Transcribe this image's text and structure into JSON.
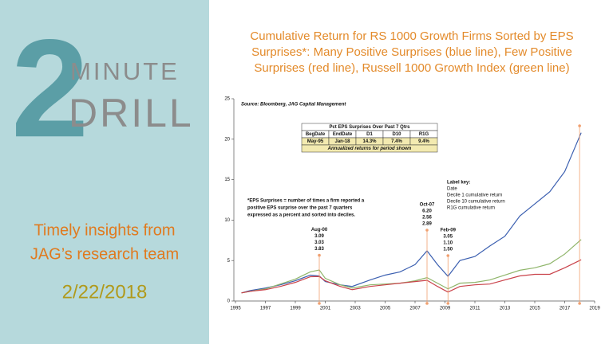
{
  "panel": {
    "number": "2",
    "word1": "MINUTE",
    "word2": "DRILL",
    "tagline": [
      "Timely insights from",
      "JAG’s research team"
    ],
    "date": "2/22/2018"
  },
  "chart_data": {
    "type": "line",
    "title": [
      "Cumulative Return for RS 1000 Growth Firms Sorted by EPS",
      "Surprises*: Many Positive Surprises (blue line), Few Positive",
      "Surprises (red line), Russell 1000 Growth Index (green line)"
    ],
    "source": "Source: Bloomberg, JAG Capital Management",
    "x": [
      1995.4,
      1996,
      1997,
      1998,
      1999,
      2000,
      2000.6,
      2001,
      2002,
      2002.8,
      2004,
      2005,
      2006,
      2007,
      2007.8,
      2008.5,
      2009.2,
      2010,
      2011,
      2012,
      2013,
      2014,
      2015,
      2016,
      2017,
      2018.1
    ],
    "series": [
      {
        "name": "Decile 1",
        "color": "#3b5fb0",
        "values": [
          1,
          1.3,
          1.6,
          2.0,
          2.5,
          3.2,
          3.09,
          2.4,
          2.0,
          1.8,
          2.6,
          3.2,
          3.6,
          4.5,
          6.2,
          4.5,
          3.05,
          5.0,
          5.5,
          6.8,
          8.0,
          10.5,
          12.0,
          13.5,
          16,
          20.8
        ]
      },
      {
        "name": "R1G",
        "color": "#8fb56a",
        "values": [
          1,
          1.2,
          1.5,
          2.1,
          2.7,
          3.6,
          3.83,
          2.8,
          2.0,
          1.6,
          2.0,
          2.1,
          2.2,
          2.5,
          2.89,
          2.2,
          1.5,
          2.2,
          2.3,
          2.6,
          3.2,
          3.8,
          4.1,
          4.6,
          5.8,
          7.6
        ]
      },
      {
        "name": "Decile 10",
        "color": "#c9424a",
        "values": [
          1,
          1.2,
          1.4,
          1.8,
          2.3,
          3.0,
          3.03,
          2.5,
          1.8,
          1.4,
          1.8,
          2.0,
          2.2,
          2.4,
          2.56,
          1.8,
          1.1,
          1.8,
          2.0,
          2.1,
          2.6,
          3.1,
          3.3,
          3.3,
          4.1,
          5.1
        ]
      }
    ],
    "xlim": [
      1995,
      2019
    ],
    "xticks": [
      1995,
      1997,
      1999,
      2001,
      2003,
      2005,
      2007,
      2009,
      2011,
      2013,
      2015,
      2017,
      2019
    ],
    "ylim": [
      0,
      25
    ],
    "yticks": [
      0,
      5,
      10,
      15,
      20,
      25
    ],
    "annotations": [
      {
        "x": 2000.6,
        "labels": [
          "Aug-00",
          "3.09",
          "3.03",
          "3.83"
        ]
      },
      {
        "x": 2007.8,
        "labels": [
          "Oct-07",
          "6.20",
          "2.56",
          "2.89"
        ]
      },
      {
        "x": 2009.2,
        "labels": [
          "Feb-09",
          "3.05",
          "1.10",
          "1.50"
        ]
      }
    ],
    "table": {
      "header": "Pct EPS Surprises Over Past 7 Qtrs",
      "columns": [
        "BegDate",
        "EndDate",
        "D1",
        "D10",
        "R1G"
      ],
      "row": [
        "May-95",
        "Jan-18",
        "14.3%",
        "7.4%",
        "9.4%"
      ],
      "footer": "Annualized returns for period shown"
    },
    "footnote": [
      "*EPS Surprises = number of times a firm reported a",
      "positive EPS surprise over the past 7 quarters",
      "expressed as a percent and sorted into deciles."
    ],
    "label_key": [
      "Label key:",
      "Date",
      "Decile 1 cumulative return",
      "Decile 10 cumulative return",
      "R1G cumulative return"
    ]
  }
}
